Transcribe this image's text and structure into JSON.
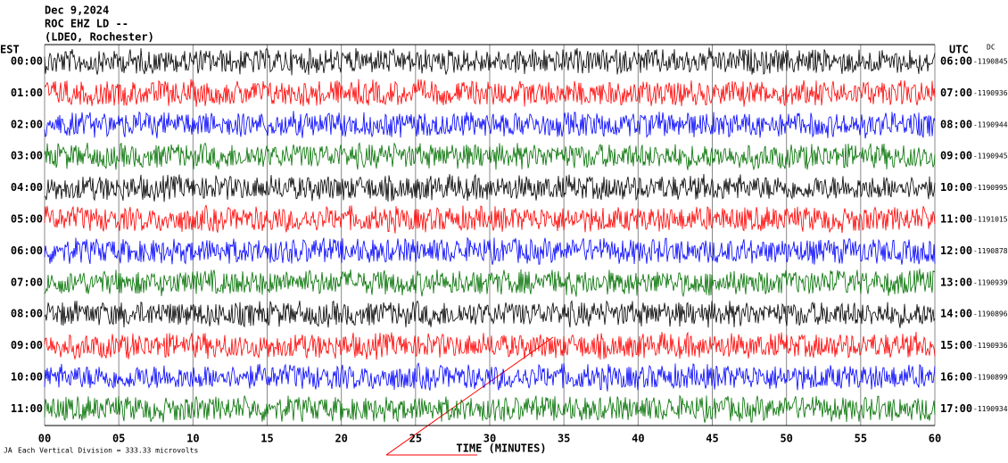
{
  "chart_data": {
    "type": "helicorder",
    "title_lines": [
      "Dec 9,2024",
      "ROC EHZ LD --",
      "(LDEO, Rochester)"
    ],
    "left_header": "EST",
    "right_header": "UTC",
    "dc_header": "DC",
    "rows": [
      {
        "est": "00:00",
        "utc": "06:00",
        "dc": -1190845,
        "color": "#000000"
      },
      {
        "est": "01:00",
        "utc": "07:00",
        "dc": -1190936,
        "color": "#ff0000"
      },
      {
        "est": "02:00",
        "utc": "08:00",
        "dc": -1190944,
        "color": "#0000ff"
      },
      {
        "est": "03:00",
        "utc": "09:00",
        "dc": -1190945,
        "color": "#007000"
      },
      {
        "est": "04:00",
        "utc": "10:00",
        "dc": -1190995,
        "color": "#000000"
      },
      {
        "est": "05:00",
        "utc": "11:00",
        "dc": -1191015,
        "color": "#ff0000"
      },
      {
        "est": "06:00",
        "utc": "12:00",
        "dc": -1190878,
        "color": "#0000ff"
      },
      {
        "est": "07:00",
        "utc": "13:00",
        "dc": -1190939,
        "color": "#007000"
      },
      {
        "est": "08:00",
        "utc": "14:00",
        "dc": -1190896,
        "color": "#000000"
      },
      {
        "est": "09:00",
        "utc": "15:00",
        "dc": -1190936,
        "color": "#ff0000"
      },
      {
        "est": "10:00",
        "utc": "16:00",
        "dc": -1190899,
        "color": "#0000ff"
      },
      {
        "est": "11:00",
        "utc": "17:00",
        "dc": -1190934,
        "color": "#007000"
      }
    ],
    "xlim": [
      0,
      60
    ],
    "xticks": [
      {
        "value": 0,
        "label": "00"
      },
      {
        "value": 5,
        "label": "05"
      },
      10,
      15,
      20,
      25,
      30,
      35,
      40,
      45,
      50,
      55,
      60
    ],
    "xlabel": "TIME (MINUTES)",
    "footnote": "Each Vertical Division =  333.33 microvolts"
  }
}
